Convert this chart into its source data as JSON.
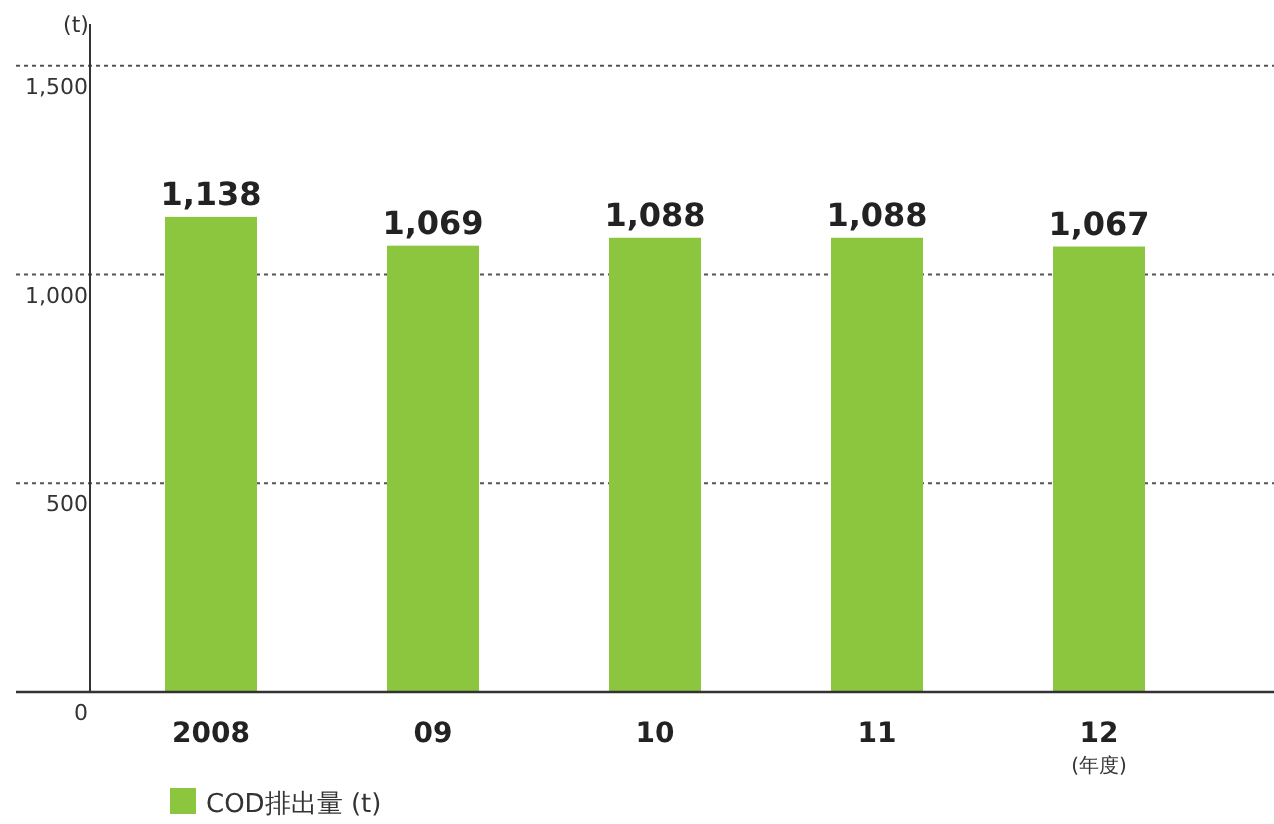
{
  "chart_data": {
    "type": "bar",
    "ylabel": "(t)",
    "xlabel": "(年度)",
    "categories": [
      "2008",
      "09",
      "10",
      "11",
      "12"
    ],
    "series": [
      {
        "name": "COD排出量 (t)",
        "color": "#8cc63f",
        "values": [
          1138,
          1069,
          1088,
          1088,
          1067
        ],
        "value_labels": [
          "1,138",
          "1,069",
          "1,088",
          "1,088",
          "1,067"
        ]
      }
    ],
    "ylim": [
      0,
      1600
    ],
    "yticks": [
      0,
      {
        "value": 500,
        "label": "500"
      },
      {
        "value": 1000,
        "label": "1,000"
      },
      {
        "value": 1500,
        "label": "1,500"
      }
    ],
    "grid": "y",
    "legend": "bottom"
  }
}
